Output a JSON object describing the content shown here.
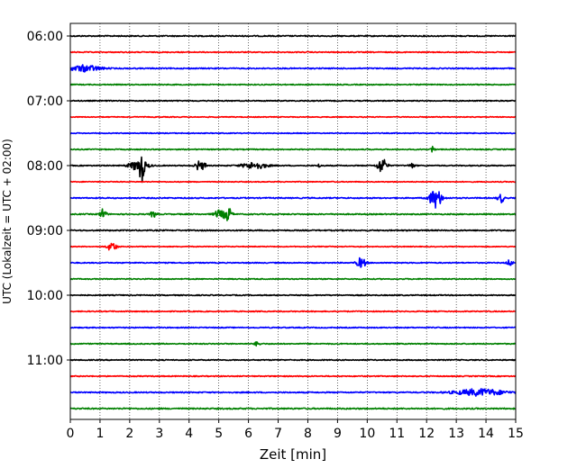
{
  "chart_data": {
    "type": "line",
    "title": "",
    "xlabel": "Zeit  [min]",
    "ylabel": "UTC (Lokalzeit = UTC + 02:00)",
    "xlim": [
      0,
      15
    ],
    "x_ticks": [
      "0",
      "1",
      "2",
      "3",
      "4",
      "5",
      "6",
      "7",
      "8",
      "9",
      "10",
      "11",
      "12",
      "13",
      "14",
      "15"
    ],
    "y_tick_labels": [
      "06:00",
      "07:00",
      "08:00",
      "09:00",
      "10:00",
      "11:00"
    ],
    "grid": "vertical dotted",
    "colors": [
      "#000000",
      "#ff0000",
      "#0000ff",
      "#008000"
    ],
    "traces": [
      {
        "start": "06:00",
        "color": "#000000",
        "noise": 0.35,
        "events": []
      },
      {
        "start": "06:15",
        "color": "#ff0000",
        "noise": 0.3,
        "events": []
      },
      {
        "start": "06:30",
        "color": "#0000ff",
        "noise": 0.35,
        "events": [
          {
            "t": 0.5,
            "amp": 1.2,
            "dur": 0.5
          }
        ]
      },
      {
        "start": "06:45",
        "color": "#008000",
        "noise": 0.3,
        "events": []
      },
      {
        "start": "07:00",
        "color": "#000000",
        "noise": 0.3,
        "events": []
      },
      {
        "start": "07:15",
        "color": "#ff0000",
        "noise": 0.25,
        "events": []
      },
      {
        "start": "07:30",
        "color": "#0000ff",
        "noise": 0.25,
        "events": []
      },
      {
        "start": "07:45",
        "color": "#008000",
        "noise": 0.3,
        "events": [
          {
            "t": 12.2,
            "amp": 1.8,
            "dur": 0.05
          }
        ]
      },
      {
        "start": "08:00",
        "color": "#000000",
        "noise": 0.3,
        "events": [
          {
            "t": 2.3,
            "amp": 2.0,
            "dur": 0.3
          },
          {
            "t": 2.4,
            "amp": 5.0,
            "dur": 0.08
          },
          {
            "t": 4.3,
            "amp": 1.8,
            "dur": 0.1
          },
          {
            "t": 4.5,
            "amp": 1.5,
            "dur": 0.08
          },
          {
            "t": 6.2,
            "amp": 1.3,
            "dur": 0.4
          },
          {
            "t": 8.4,
            "amp": 0.9,
            "dur": 0.05
          },
          {
            "t": 10.5,
            "amp": 3.0,
            "dur": 0.15
          },
          {
            "t": 11.5,
            "amp": 0.9,
            "dur": 0.1
          }
        ]
      },
      {
        "start": "08:15",
        "color": "#ff0000",
        "noise": 0.25,
        "events": []
      },
      {
        "start": "08:30",
        "color": "#0000ff",
        "noise": 0.35,
        "events": [
          {
            "t": 12.3,
            "amp": 3.8,
            "dur": 0.2
          },
          {
            "t": 14.5,
            "amp": 1.8,
            "dur": 0.1
          }
        ]
      },
      {
        "start": "08:45",
        "color": "#008000",
        "noise": 0.35,
        "events": [
          {
            "t": 1.1,
            "amp": 2.0,
            "dur": 0.1
          },
          {
            "t": 2.8,
            "amp": 1.2,
            "dur": 0.1
          },
          {
            "t": 5.0,
            "amp": 1.5,
            "dur": 0.15
          },
          {
            "t": 5.3,
            "amp": 3.0,
            "dur": 0.12
          }
        ]
      },
      {
        "start": "09:00",
        "color": "#000000",
        "noise": 0.35,
        "events": []
      },
      {
        "start": "09:15",
        "color": "#ff0000",
        "noise": 0.25,
        "events": [
          {
            "t": 1.4,
            "amp": 1.8,
            "dur": 0.15
          }
        ]
      },
      {
        "start": "09:30",
        "color": "#0000ff",
        "noise": 0.3,
        "events": [
          {
            "t": 9.8,
            "amp": 2.0,
            "dur": 0.15
          },
          {
            "t": 14.8,
            "amp": 1.2,
            "dur": 0.1
          }
        ]
      },
      {
        "start": "09:45",
        "color": "#008000",
        "noise": 0.3,
        "events": []
      },
      {
        "start": "10:00",
        "color": "#000000",
        "noise": 0.3,
        "events": []
      },
      {
        "start": "10:15",
        "color": "#ff0000",
        "noise": 0.3,
        "events": []
      },
      {
        "start": "10:30",
        "color": "#0000ff",
        "noise": 0.3,
        "events": []
      },
      {
        "start": "10:45",
        "color": "#008000",
        "noise": 0.3,
        "events": [
          {
            "t": 6.3,
            "amp": 0.8,
            "dur": 0.1
          }
        ]
      },
      {
        "start": "11:00",
        "color": "#000000",
        "noise": 0.3,
        "events": []
      },
      {
        "start": "11:15",
        "color": "#ff0000",
        "noise": 0.3,
        "events": []
      },
      {
        "start": "11:30",
        "color": "#0000ff",
        "noise": 0.35,
        "events": [
          {
            "t": 13.8,
            "amp": 1.3,
            "dur": 0.8
          }
        ]
      },
      {
        "start": "11:45",
        "color": "#008000",
        "noise": 0.4,
        "events": []
      }
    ]
  }
}
